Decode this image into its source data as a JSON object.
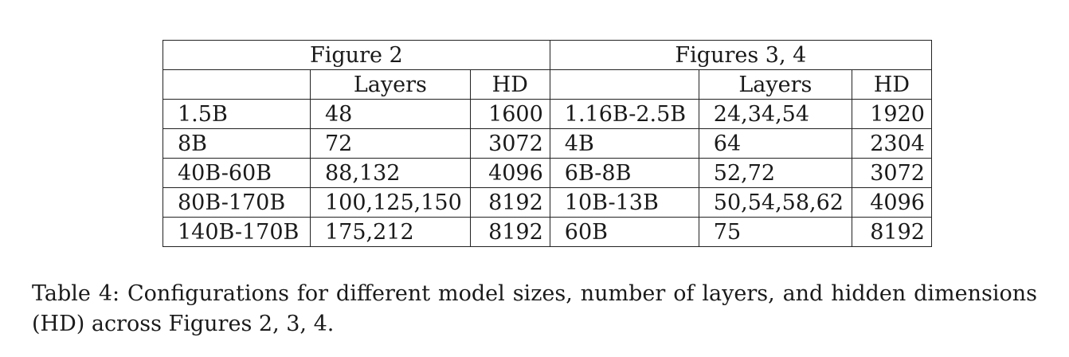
{
  "table": {
    "group_headers": [
      "Figure  2",
      "Figures  3, 4"
    ],
    "sub_headers": [
      "",
      "Layers",
      "HD",
      "",
      "Layers",
      "HD"
    ],
    "rows": [
      [
        "1.5B",
        "48",
        "1600",
        "1.16B-2.5B",
        "24,34,54",
        "1920"
      ],
      [
        "8B",
        "72",
        "3072",
        "4B",
        "64",
        "2304"
      ],
      [
        "40B-60B",
        "88,132",
        "4096",
        "6B-8B",
        "52,72",
        "3072"
      ],
      [
        "80B-170B",
        "100,125,150",
        "8192",
        "10B-13B",
        "50,54,58,62",
        "4096"
      ],
      [
        "140B-170B",
        "175,212",
        "8192",
        "60B",
        "75",
        "8192"
      ]
    ]
  },
  "caption": "Table 4:  Configurations for different model sizes, number of layers, and hidden dimensions (HD) across Figures 2, 3, 4."
}
